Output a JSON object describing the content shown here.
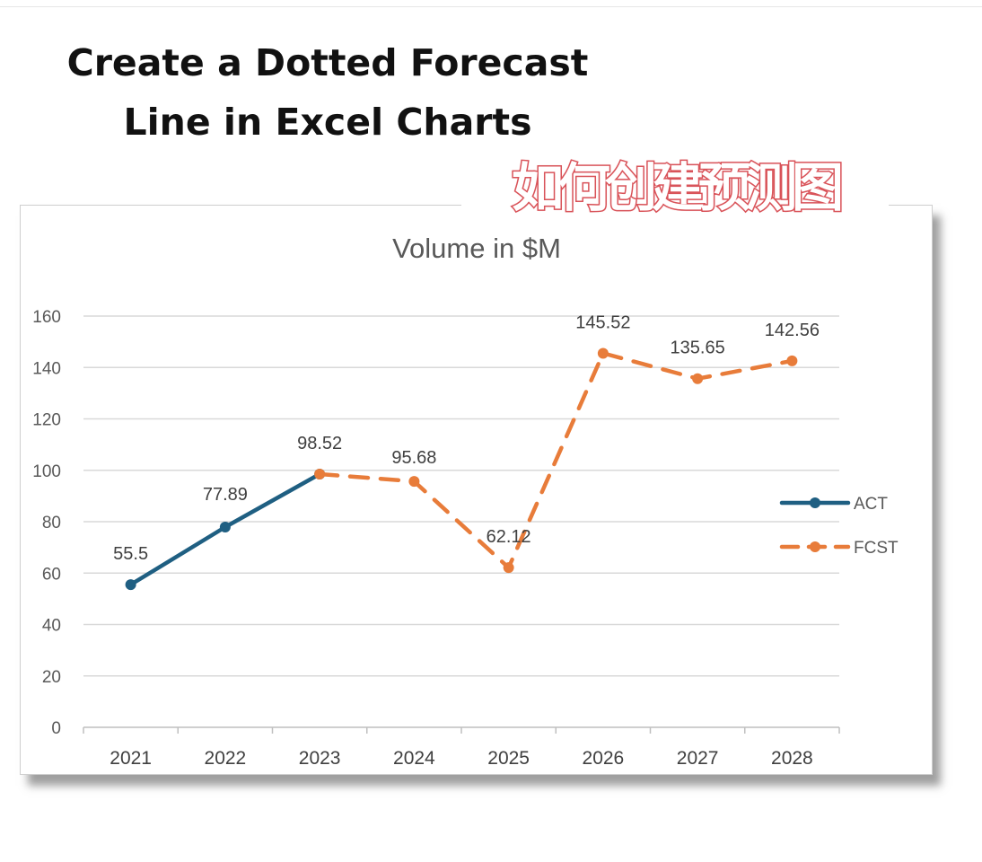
{
  "page": {
    "headline_line1": "Create a Dotted Forecast",
    "headline_line2": "Line in Excel Charts",
    "chinese_banner": "如何创建预测图"
  },
  "colors": {
    "act": "#1f5f82",
    "fcst": "#e87c3a",
    "banner_outline": "#d9545a",
    "grid": "#d9d9d9"
  },
  "chart_data": {
    "type": "line",
    "title": "Volume in $M",
    "categories": [
      "2021",
      "2022",
      "2023",
      "2024",
      "2025",
      "2026",
      "2027",
      "2028"
    ],
    "ylim": [
      0,
      160
    ],
    "yticks": [
      0,
      20,
      40,
      60,
      80,
      100,
      120,
      140,
      160
    ],
    "grid": true,
    "legend_position": "right",
    "series": [
      {
        "name": "ACT",
        "style": "solid",
        "values": [
          55.5,
          77.89,
          98.52,
          null,
          null,
          null,
          null,
          null
        ]
      },
      {
        "name": "FCST",
        "style": "dashed",
        "values": [
          null,
          null,
          98.52,
          95.68,
          62.12,
          145.52,
          135.65,
          142.56
        ]
      }
    ],
    "data_labels": [
      "55.5",
      "77.89",
      "98.52",
      "95.68",
      "62.12",
      "145.52",
      "135.65",
      "142.56"
    ]
  }
}
